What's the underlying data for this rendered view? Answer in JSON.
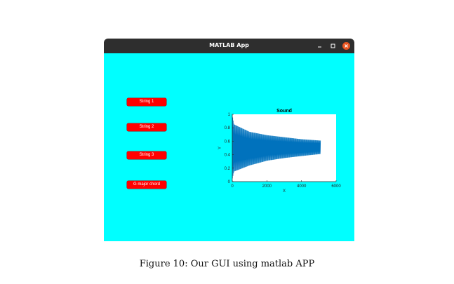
{
  "window": {
    "title": "MATLAB App",
    "controls": {
      "minimize_icon": "minimize-icon",
      "maximize_icon": "maximize-icon",
      "close_icon": "close-icon"
    }
  },
  "colors": {
    "background": "#00ffff",
    "button": "#ff0000",
    "button_text": "#ffffff",
    "plot_line": "#0072bd",
    "close_button": "#e95420"
  },
  "buttons": [
    {
      "label": "String 1"
    },
    {
      "label": "String 2"
    },
    {
      "label": "String 3"
    },
    {
      "label": "G major chord"
    }
  ],
  "chart_data": {
    "type": "line",
    "title": "Sound",
    "xlabel": "X",
    "ylabel": "Y",
    "xlim": [
      0,
      6000
    ],
    "ylim": [
      0,
      1
    ],
    "xticks": [
      0,
      2000,
      4000,
      6000
    ],
    "yticks": [
      0,
      0.2,
      0.4,
      0.6,
      0.8,
      1
    ],
    "series": [
      {
        "x_range": [
          0,
          5100
        ],
        "center": 0.5,
        "upper_envelope": [
          [
            0,
            1.0
          ],
          [
            100,
            0.85
          ],
          [
            1000,
            0.74
          ],
          [
            2000,
            0.69
          ],
          [
            3000,
            0.66
          ],
          [
            4000,
            0.63
          ],
          [
            5100,
            0.61
          ]
        ],
        "lower_envelope": [
          [
            0,
            0.03
          ],
          [
            100,
            0.15
          ],
          [
            1000,
            0.24
          ],
          [
            2000,
            0.31
          ],
          [
            3000,
            0.35
          ],
          [
            4000,
            0.38
          ],
          [
            5100,
            0.41
          ]
        ]
      }
    ],
    "grid": false
  },
  "caption": "Figure 10: Our GUI using matlab APP"
}
